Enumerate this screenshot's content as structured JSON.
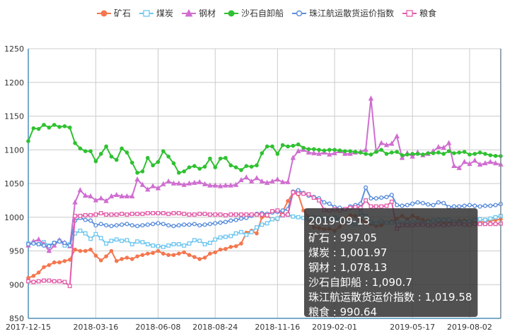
{
  "chart_data": {
    "type": "line",
    "x": [
      "2017-12-15",
      "2017-12-22",
      "2017-12-29",
      "2018-01-05",
      "2018-01-12",
      "2018-01-19",
      "2018-01-26",
      "2018-02-02",
      "2018-02-09",
      "2018-02-16",
      "2018-02-23",
      "2018-03-02",
      "2018-03-09",
      "2018-03-16",
      "2018-03-23",
      "2018-03-30",
      "2018-04-06",
      "2018-04-13",
      "2018-04-20",
      "2018-04-27",
      "2018-05-04",
      "2018-05-11",
      "2018-05-18",
      "2018-05-25",
      "2018-06-01",
      "2018-06-08",
      "2018-06-15",
      "2018-06-22",
      "2018-06-29",
      "2018-07-06",
      "2018-07-13",
      "2018-07-20",
      "2018-07-27",
      "2018-08-03",
      "2018-08-10",
      "2018-08-17",
      "2018-08-24",
      "2018-08-31",
      "2018-09-07",
      "2018-09-14",
      "2018-09-21",
      "2018-09-28",
      "2018-10-05",
      "2018-10-12",
      "2018-10-19",
      "2018-10-26",
      "2018-11-02",
      "2018-11-09",
      "2018-11-16",
      "2018-11-23",
      "2018-11-30",
      "2018-12-07",
      "2018-12-14",
      "2018-12-21",
      "2018-12-28",
      "2019-01-04",
      "2019-01-11",
      "2019-01-18",
      "2019-01-25",
      "2019-02-01",
      "2019-02-08",
      "2019-02-15",
      "2019-02-22",
      "2019-03-01",
      "2019-03-08",
      "2019-03-15",
      "2019-03-22",
      "2019-03-29",
      "2019-04-05",
      "2019-04-12",
      "2019-04-19",
      "2019-04-26",
      "2019-05-03",
      "2019-05-10",
      "2019-05-17",
      "2019-05-24",
      "2019-05-31",
      "2019-06-07",
      "2019-06-14",
      "2019-06-21",
      "2019-06-28",
      "2019-07-05",
      "2019-07-12",
      "2019-07-19",
      "2019-07-26",
      "2019-08-02",
      "2019-08-09",
      "2019-08-16",
      "2019-08-23",
      "2019-08-30",
      "2019-09-06",
      "2019-09-13"
    ],
    "x_tick_labels": [
      "2017-12-15",
      "2018-03-16",
      "2018-06-08",
      "2018-08-24",
      "2018-11-16",
      "2019-02-01",
      "2019-05-17",
      "2019-08-02"
    ],
    "ylim": [
      850,
      1250
    ],
    "y_ticks": [
      850,
      900,
      950,
      1000,
      1050,
      1100,
      1150,
      1200,
      1250
    ],
    "grid": true,
    "legend_position": "top-center",
    "series": [
      {
        "name": "矿石",
        "color": "#f4774f",
        "marker": "circle",
        "values": [
          910,
          913,
          918,
          926,
          929,
          933,
          933,
          935,
          937,
          952,
          950,
          950,
          952,
          943,
          936,
          942,
          950,
          935,
          938,
          940,
          938,
          942,
          944,
          946,
          947,
          950,
          946,
          944,
          944,
          946,
          948,
          944,
          941,
          938,
          940,
          946,
          948,
          952,
          953,
          956,
          957,
          961,
          977,
          980,
          976,
          1000,
          1002,
          997,
          997,
          1008,
          1024,
          1036,
          1034,
          1010,
          1000,
          985,
          984,
          982,
          983,
          980,
          986,
          998,
          1003,
          1002,
          996,
          993,
          990,
          987,
          988,
          992,
          994,
          998,
          1002,
          997,
          1002,
          999,
          996,
          995,
          995,
          994,
          992,
          992,
          993,
          995,
          995,
          994,
          993,
          992,
          994,
          995,
          996,
          997.05
        ]
      },
      {
        "name": "煤炭",
        "color": "#6ec7f0",
        "marker": "square",
        "values": [
          961,
          962,
          960,
          963,
          958,
          962,
          965,
          958,
          960,
          976,
          980,
          976,
          968,
          975,
          969,
          961,
          965,
          967,
          965,
          966,
          960,
          964,
          963,
          960,
          958,
          957,
          956,
          958,
          960,
          960,
          958,
          961,
          966,
          965,
          960,
          962,
          967,
          970,
          971,
          972,
          976,
          978,
          974,
          978,
          985,
          989,
          991,
          997,
          998,
          1003,
          1004,
          1001,
          1000,
          999,
          997,
          1000,
          999,
          997,
          998,
          999,
          996,
          994,
          992,
          990,
          1007,
          1002,
          993,
          991,
          994,
          992,
          992,
          993,
          991,
          993,
          992,
          993,
          991,
          993,
          995,
          996,
          996,
          996,
          994,
          992,
          993,
          994,
          996,
          997,
          996,
          998,
          1000,
          1001.97
        ]
      },
      {
        "name": "钢材",
        "color": "#cf6ed0",
        "marker": "triangle",
        "values": [
          958,
          964,
          967,
          960,
          950,
          958,
          966,
          962,
          957,
          1022,
          1040,
          1032,
          1031,
          1025,
          1028,
          1024,
          1031,
          1033,
          1031,
          1031,
          1031,
          1056,
          1048,
          1041,
          1046,
          1043,
          1049,
          1053,
          1050,
          1050,
          1048,
          1050,
          1051,
          1052,
          1049,
          1047,
          1047,
          1046,
          1047,
          1047,
          1048,
          1055,
          1059,
          1053,
          1058,
          1053,
          1051,
          1053,
          1056,
          1052,
          1052,
          1088,
          1098,
          1100,
          1096,
          1095,
          1094,
          1096,
          1093,
          1095,
          1098,
          1094,
          1094,
          1096,
          1097,
          1100,
          1176,
          1098,
          1110,
          1107,
          1109,
          1120,
          1088,
          1095,
          1090,
          1096,
          1092,
          1094,
          1098,
          1104,
          1103,
          1110,
          1076,
          1073,
          1082,
          1079,
          1084,
          1078,
          1080,
          1082,
          1080,
          1078.13
        ]
      },
      {
        "name": "沙石自卸船",
        "color": "#2fc131",
        "marker": "circle",
        "values": [
          1113,
          1132,
          1131,
          1137,
          1133,
          1137,
          1134,
          1135,
          1133,
          1110,
          1102,
          1098,
          1098,
          1083,
          1094,
          1105,
          1090,
          1085,
          1102,
          1096,
          1081,
          1066,
          1068,
          1088,
          1077,
          1082,
          1098,
          1090,
          1080,
          1066,
          1068,
          1074,
          1076,
          1072,
          1075,
          1087,
          1074,
          1087,
          1088,
          1077,
          1074,
          1070,
          1076,
          1075,
          1077,
          1095,
          1105,
          1105,
          1094,
          1107,
          1105,
          1106,
          1108,
          1103,
          1101,
          1101,
          1100,
          1099,
          1100,
          1100,
          1099,
          1098,
          1098,
          1097,
          1096,
          1094,
          1093,
          1097,
          1100,
          1094,
          1096,
          1097,
          1092,
          1093,
          1094,
          1094,
          1093,
          1095,
          1095,
          1096,
          1094,
          1098,
          1095,
          1096,
          1097,
          1093,
          1094,
          1096,
          1094,
          1092,
          1091,
          1090.7
        ]
      },
      {
        "name": "珠江航运散货运价指数",
        "color": "#5c8fdc",
        "marker": "circle",
        "values": [
          960,
          961,
          960,
          958,
          957,
          962,
          964,
          962,
          958,
          995,
          999,
          996,
          995,
          988,
          990,
          988,
          987,
          988,
          989,
          990,
          988,
          987,
          988,
          989,
          990,
          991,
          990,
          988,
          987,
          988,
          989,
          989,
          990,
          988,
          989,
          990,
          991,
          992,
          993,
          995,
          996,
          998,
          999,
          1002,
          1005,
          1006,
          1005,
          1007,
          1008,
          1010,
          1012,
          1038,
          1040,
          1036,
          1032,
          1030,
          1028,
          1022,
          1020,
          1015,
          1014,
          1012,
          1016,
          1018,
          1020,
          1044,
          1028,
          1028,
          1029,
          1030,
          1033,
          1018,
          1017,
          1018,
          1020,
          1022,
          1021,
          1019,
          1018,
          1022,
          1021,
          1015,
          1016,
          1016,
          1017,
          1018,
          1017,
          1016,
          1017,
          1017,
          1018,
          1019.58
        ]
      },
      {
        "name": "粮食",
        "color": "#e35ca8",
        "marker": "square",
        "values": [
          905,
          904,
          905,
          906,
          906,
          905,
          905,
          904,
          898,
          1002,
          1002,
          1003,
          1003,
          1004,
          1006,
          1004,
          1004,
          1004,
          1005,
          1004,
          1005,
          1005,
          1005,
          1006,
          1006,
          1006,
          1006,
          1005,
          1006,
          1006,
          1005,
          1004,
          1004,
          1005,
          1005,
          1004,
          1004,
          1004,
          1003,
          1004,
          1004,
          1004,
          1004,
          1004,
          1004,
          1004,
          1003,
          1009,
          1010,
          1003,
          1004,
          1037,
          1035,
          1035,
          1034,
          1029,
          1025,
          1011,
          1010,
          1012,
          1010,
          1012,
          1014,
          1015,
          1014,
          1025,
          1016,
          1016,
          1016,
          1017,
          1023,
          983,
          988,
          988,
          988,
          989,
          989,
          988,
          988,
          989,
          988,
          989,
          990,
          990,
          989,
          989,
          990,
          990,
          990,
          990,
          990,
          990.64
        ]
      }
    ],
    "tooltip": {
      "title": "2019-09-13",
      "rows": [
        {
          "label": "矿石",
          "value": "997.05"
        },
        {
          "label": "煤炭",
          "value": "1,001.97"
        },
        {
          "label": "钢材",
          "value": "1,078.13"
        },
        {
          "label": "沙石自卸船",
          "value": "1,090.7"
        },
        {
          "label": "珠江航运散货运价指数",
          "value": "1,019.58"
        },
        {
          "label": "粮食",
          "value": "990.64"
        }
      ]
    }
  }
}
